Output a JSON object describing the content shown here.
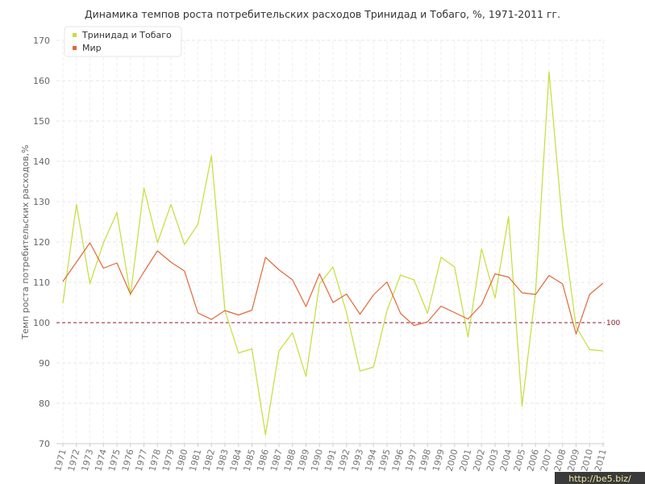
{
  "chart_data": {
    "type": "line",
    "title": "Динамика темпов роста потребительских расходов Тринидад и Тобаго, %, 1971-2011 гг.",
    "xlabel": "",
    "ylabel": "Темп роста потребительских расходов,%",
    "ylim": [
      70,
      170
    ],
    "yticks": [
      "70",
      "80",
      "90",
      "100",
      "110",
      "120",
      "130",
      "140",
      "150",
      "160",
      "170"
    ],
    "categories": [
      "1971",
      "1972",
      "1973",
      "1974",
      "1975",
      "1976",
      "1977",
      "1978",
      "1979",
      "1980",
      "1981",
      "1982",
      "1983",
      "1984",
      "1985",
      "1986",
      "1987",
      "1988",
      "1989",
      "1990",
      "1991",
      "1992",
      "1993",
      "1994",
      "1995",
      "1996",
      "1997",
      "1998",
      "1999",
      "2000",
      "2001",
      "2002",
      "2003",
      "2004",
      "2005",
      "2006",
      "2007",
      "2008",
      "2009",
      "2010",
      "2011"
    ],
    "series": [
      {
        "name": "Тринидад и Тобаго",
        "color": "#c2df3a",
        "values": [
          104.8,
          129.3,
          109.7,
          119.8,
          127.3,
          106.8,
          133.4,
          119.8,
          129.3,
          119.4,
          124.4,
          141.4,
          103.0,
          92.5,
          93.5,
          72.2,
          93.0,
          97.5,
          86.7,
          109.6,
          113.8,
          102.5,
          88.0,
          89.0,
          103.0,
          111.8,
          110.6,
          102.3,
          116.2,
          113.8,
          96.4,
          118.3,
          106.1,
          126.3,
          79.3,
          107.6,
          162.2,
          124.1,
          99.0,
          93.3,
          93.0
        ]
      },
      {
        "name": "Мир",
        "color": "#e0683a",
        "values": [
          110.2,
          115.0,
          119.8,
          113.5,
          114.8,
          107.1,
          112.6,
          117.8,
          115.0,
          112.8,
          102.4,
          100.8,
          103.0,
          101.9,
          103.1,
          116.2,
          113.1,
          110.6,
          104.0,
          112.1,
          105.0,
          107.1,
          102.1,
          106.9,
          110.1,
          102.3,
          99.3,
          100.2,
          104.1,
          102.5,
          100.9,
          104.5,
          112.1,
          111.3,
          107.4,
          107.0,
          111.7,
          109.6,
          97.2,
          107.0,
          109.8
        ]
      }
    ],
    "reference_line": {
      "value": 100,
      "label": "100",
      "color": "#8b1a2b"
    },
    "grid": true,
    "legend_position": "top-left",
    "watermark": "http://be5.biz/"
  }
}
